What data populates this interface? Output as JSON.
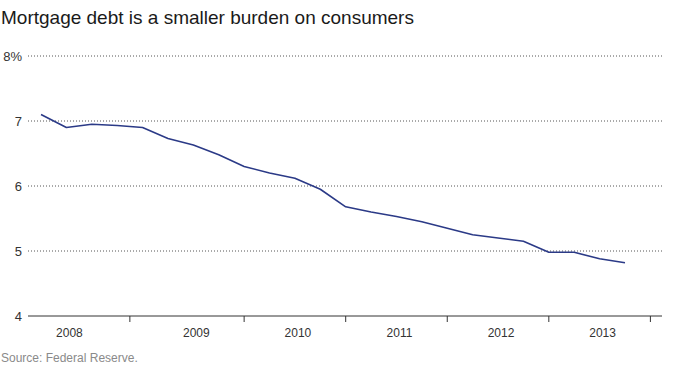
{
  "chart_data": {
    "type": "line",
    "title": "Mortgage debt is a smaller burden on consumers",
    "source": "Source: Federal Reserve.",
    "categories": [
      null,
      "2008",
      null,
      null,
      null,
      null,
      "2009",
      null,
      null,
      null,
      "2010",
      null,
      null,
      null,
      "2011",
      null,
      null,
      null,
      "2012",
      null,
      null,
      null,
      "2013",
      null
    ],
    "values": [
      7.1,
      6.9,
      6.95,
      6.93,
      6.9,
      6.73,
      6.63,
      6.48,
      6.3,
      6.2,
      6.12,
      5.95,
      5.68,
      5.6,
      5.53,
      5.45,
      5.35,
      5.25,
      5.2,
      5.15,
      4.98,
      4.98,
      4.88,
      4.82
    ],
    "color": "#2b3a87",
    "ylim": [
      4,
      8
    ],
    "yticks": [
      4,
      5,
      6,
      7,
      {
        "value": 8,
        "label": "8%"
      }
    ],
    "grid": true
  }
}
